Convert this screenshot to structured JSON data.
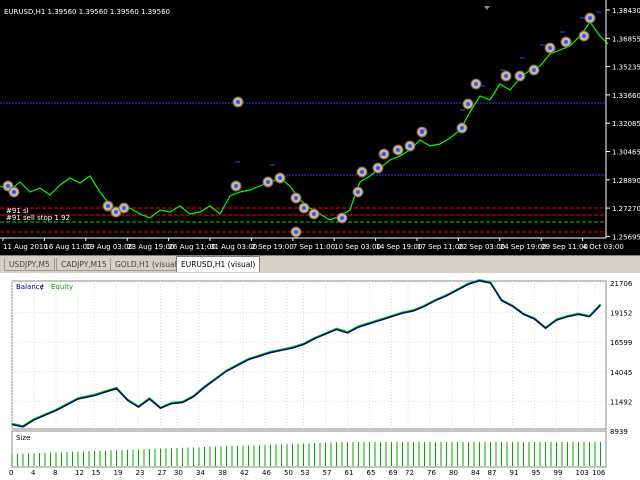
{
  "chart": {
    "title": "EURUSD,H1  1.39560 1.39560 1.39560 1.39560",
    "price_labels": [
      "1.38430",
      "1.36855",
      "1.35235",
      "1.33660",
      "1.32085",
      "1.30465",
      "1.28890",
      "1.27270",
      "1.25695"
    ],
    "time_labels": [
      "11 Aug 2010",
      "16 Aug 11:00",
      "19 Aug 03:00",
      "23 Aug 19:00",
      "26 Aug 11:00",
      "31 Aug 03:00",
      "2 Sep 19:00",
      "7 Sep 11:00",
      "10 Sep 03:00",
      "14 Sep 19:00",
      "17 Sep 11:00",
      "22 Sep 03:00",
      "24 Sep 19:00",
      "29 Sep 11:00",
      "4 Oct 03:00"
    ],
    "order_labels": [
      "#91 sl",
      "#91 sell stop 1.92"
    ],
    "colors": {
      "background": "#000000",
      "price_line": "#00ff00",
      "sl_line": "#ff0000",
      "entry_line": "#00cc00",
      "blue_line": "#3333ff"
    }
  },
  "tabs": [
    {
      "label": "USDJPY,M5"
    },
    {
      "label": "CADJPY,M15"
    },
    {
      "label": "GOLD,H1 (visual)"
    },
    {
      "label": "EURUSD,H1 (visual)",
      "active": true
    }
  ],
  "report": {
    "legend_balance": "Balance",
    "legend_sep": " / ",
    "legend_equity": "Equity",
    "size_label": "Size",
    "balance_axis": [
      "21706",
      "19152",
      "16599",
      "14045",
      "11492",
      "8939"
    ],
    "x_axis": [
      "0",
      "4",
      "8",
      "12",
      "15",
      "19",
      "23",
      "27",
      "30",
      "34",
      "38",
      "42",
      "46",
      "50",
      "53",
      "57",
      "61",
      "65",
      "69",
      "72",
      "76",
      "80",
      "84",
      "87",
      "91",
      "95",
      "99",
      "103",
      "106"
    ],
    "colors": {
      "balance": "#000080",
      "equity": "#00cc00",
      "size": "#00aa00",
      "grid": "#cccccc"
    }
  },
  "chart_data": {
    "type": "line",
    "ylim": [
      8939,
      21706
    ],
    "xlim": [
      0,
      108
    ],
    "series": [
      {
        "name": "Balance",
        "x": [
          0,
          2,
          4,
          6,
          8,
          10,
          12,
          15,
          17,
          19,
          21,
          23,
          25,
          27,
          29,
          31,
          33,
          35,
          37,
          39,
          41,
          43,
          45,
          47,
          49,
          51,
          53,
          55,
          57,
          59,
          61,
          63,
          65,
          67,
          69,
          71,
          73,
          75,
          77,
          79,
          81,
          83,
          85,
          87,
          89,
          91,
          93,
          95,
          97,
          99,
          101,
          103,
          105,
          107
        ],
        "y": [
          9500,
          9300,
          9900,
          10300,
          10700,
          11200,
          11700,
          12000,
          12300,
          12600,
          11600,
          11000,
          11700,
          10900,
          11300,
          11400,
          11900,
          12700,
          13400,
          14100,
          14600,
          15100,
          15400,
          15700,
          15900,
          16100,
          16400,
          16900,
          17300,
          17700,
          17400,
          17900,
          18200,
          18500,
          18800,
          19100,
          19300,
          19700,
          20200,
          20600,
          21100,
          21600,
          21900,
          21706,
          20200,
          19700,
          19000,
          18600,
          17800,
          18500,
          18800,
          19000,
          18800,
          19800
        ]
      },
      {
        "name": "Equity",
        "x": [
          0,
          107
        ],
        "y": [
          9500,
          19800
        ]
      }
    ]
  }
}
